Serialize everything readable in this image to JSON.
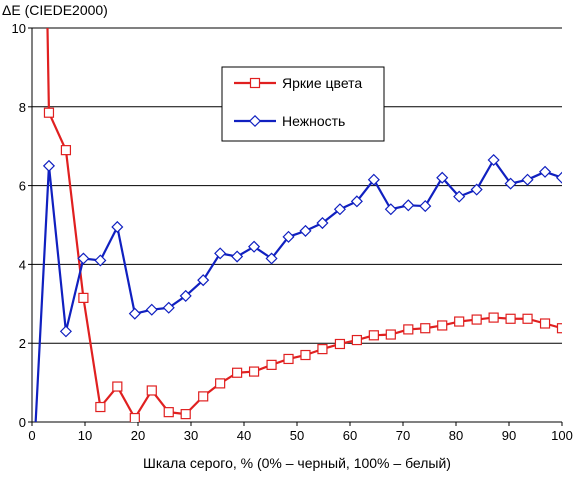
{
  "chart_data": {
    "type": "line",
    "title": "",
    "ylabel": "ΔE (CIEDE2000)",
    "xlabel": "Шкала серого, % (0% – черный, 100% – белый)",
    "xlim": [
      0,
      100
    ],
    "ylim": [
      0,
      10
    ],
    "x_ticks": [
      "0",
      "10",
      "20",
      "30",
      "40",
      "50",
      "60",
      "70",
      "80",
      "90",
      "100"
    ],
    "y_ticks": [
      "0",
      "2",
      "4",
      "6",
      "8",
      "10"
    ],
    "grid": "horizontal",
    "legend_position": "top-center",
    "series": [
      {
        "name": "Яркие цвета",
        "color": "#e02020",
        "marker": "square",
        "points": [
          [
            2.6,
            12.5
          ],
          [
            3.2,
            7.85
          ],
          [
            6.4,
            6.9
          ],
          [
            9.7,
            3.15
          ],
          [
            12.9,
            0.38
          ],
          [
            16.1,
            0.9
          ],
          [
            19.4,
            0.1
          ],
          [
            22.6,
            0.8
          ],
          [
            25.8,
            0.25
          ],
          [
            29.0,
            0.2
          ],
          [
            32.3,
            0.65
          ],
          [
            35.5,
            0.98
          ],
          [
            38.7,
            1.25
          ],
          [
            41.9,
            1.28
          ],
          [
            45.2,
            1.45
          ],
          [
            48.4,
            1.6
          ],
          [
            51.6,
            1.7
          ],
          [
            54.8,
            1.85
          ],
          [
            58.1,
            1.98
          ],
          [
            61.3,
            2.08
          ],
          [
            64.5,
            2.2
          ],
          [
            67.7,
            2.22
          ],
          [
            71.0,
            2.35
          ],
          [
            74.2,
            2.38
          ],
          [
            77.4,
            2.45
          ],
          [
            80.6,
            2.55
          ],
          [
            83.9,
            2.6
          ],
          [
            87.1,
            2.65
          ],
          [
            90.3,
            2.62
          ],
          [
            93.5,
            2.62
          ],
          [
            96.8,
            2.5
          ],
          [
            100,
            2.38
          ]
        ]
      },
      {
        "name": "Нежность",
        "color": "#1020c0",
        "marker": "diamond",
        "points": [
          [
            0.3,
            -1.0
          ],
          [
            3.2,
            6.5
          ],
          [
            6.4,
            2.3
          ],
          [
            9.7,
            4.15
          ],
          [
            12.9,
            4.1
          ],
          [
            16.1,
            4.95
          ],
          [
            19.4,
            2.75
          ],
          [
            22.6,
            2.85
          ],
          [
            25.8,
            2.9
          ],
          [
            29.0,
            3.2
          ],
          [
            32.3,
            3.6
          ],
          [
            35.5,
            4.28
          ],
          [
            38.7,
            4.2
          ],
          [
            41.9,
            4.45
          ],
          [
            45.2,
            4.15
          ],
          [
            48.4,
            4.7
          ],
          [
            51.6,
            4.85
          ],
          [
            54.8,
            5.05
          ],
          [
            58.1,
            5.4
          ],
          [
            61.3,
            5.6
          ],
          [
            64.5,
            6.15
          ],
          [
            67.7,
            5.4
          ],
          [
            71.0,
            5.5
          ],
          [
            74.2,
            5.48
          ],
          [
            77.4,
            6.2
          ],
          [
            80.6,
            5.72
          ],
          [
            83.9,
            5.9
          ],
          [
            87.1,
            6.65
          ],
          [
            90.3,
            6.05
          ],
          [
            93.5,
            6.15
          ],
          [
            96.8,
            6.35
          ],
          [
            100,
            6.2
          ]
        ]
      }
    ]
  }
}
